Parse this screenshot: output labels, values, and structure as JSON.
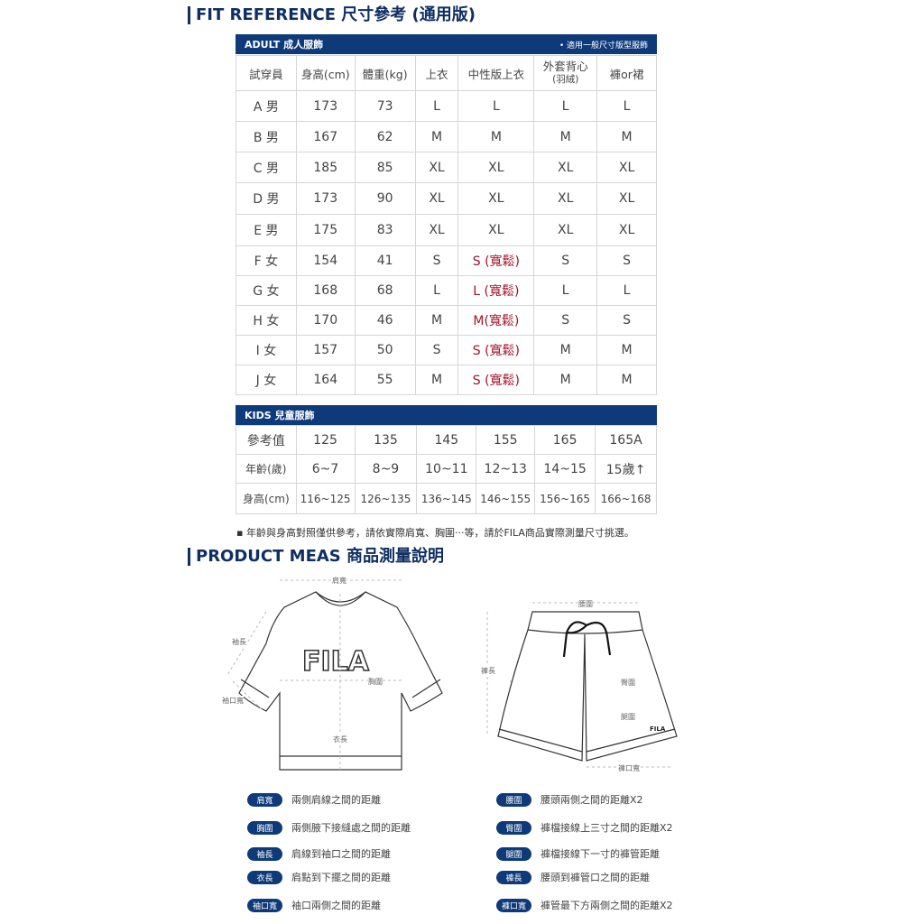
{
  "fit": {
    "title": "FIT REFERENCE  尺寸參考 (通用版)",
    "adult": {
      "label": "ADULT 成人服飾",
      "note": "• 適用一般尺寸版型服飾",
      "headers": [
        "試穿員",
        "身高(cm)",
        "體重(kg)",
        "上衣",
        "中性版上衣",
        "外套背心",
        "(羽絨)",
        "褲or裙"
      ],
      "rows": [
        [
          "A 男",
          "173",
          "73",
          "L",
          "L",
          "L",
          "L"
        ],
        [
          "B 男",
          "167",
          "62",
          "M",
          "M",
          "M",
          "M"
        ],
        [
          "C 男",
          "185",
          "85",
          "XL",
          "XL",
          "XL",
          "XL"
        ],
        [
          "D 男",
          "173",
          "90",
          "XL",
          "XL",
          "XL",
          "XL"
        ],
        [
          "E 男",
          "175",
          "83",
          "XL",
          "XL",
          "XL",
          "XL"
        ],
        [
          "F 女",
          "154",
          "41",
          "S",
          "S (寬鬆)",
          "S",
          "S"
        ],
        [
          "G 女",
          "168",
          "68",
          "L",
          "L (寬鬆)",
          "L",
          "L"
        ],
        [
          "H 女",
          "170",
          "46",
          "M",
          "M(寬鬆)",
          "S",
          "S"
        ],
        [
          "I 女",
          "157",
          "50",
          "S",
          "S (寬鬆)",
          "M",
          "M"
        ],
        [
          "J 女",
          "164",
          "55",
          "M",
          "S (寬鬆)",
          "M",
          "M"
        ]
      ]
    },
    "kids": {
      "label": "KIDS 兒童服飾",
      "rows": [
        [
          "參考值",
          "125",
          "135",
          "145",
          "155",
          "165",
          "165A"
        ],
        [
          "年齡(歲)",
          "6~7",
          "8~9",
          "10~11",
          "12~13",
          "14~15",
          "15歲↑"
        ],
        [
          "身高(cm)",
          "116~125",
          "126~135",
          "136~145",
          "146~155",
          "156~165",
          "166~168"
        ]
      ]
    },
    "footnote": "▪ 年齡與身高對照僅供參考，請依實際肩寬、胸圍‧‧‧等，請於FILA商品實際測量尺寸挑選。"
  },
  "meas": {
    "title": "PRODUCT MEAS  商品測量說明",
    "tee_labels": {
      "shoulder": "肩寬",
      "sleeve": "袖長",
      "cuff": "袖口寬",
      "chest": "胸圍",
      "length": "衣長",
      "logo": "FILA"
    },
    "shorts_labels": {
      "waist": "腰圍",
      "length": "褲長",
      "hip": "臀圍",
      "thigh": "腿圍",
      "hem": "褲口寬",
      "logo": "FILA"
    },
    "legend_left": [
      [
        "肩寬",
        "兩側肩線之間的距離"
      ],
      [
        "胸圍",
        "兩側腋下接縫處之間的距離"
      ],
      [
        "袖長",
        "肩線到袖口之間的距離"
      ],
      [
        "衣長",
        "肩點到下擺之間的距離"
      ],
      [
        "袖口寬",
        "袖口兩側之間的距離"
      ]
    ],
    "legend_right": [
      [
        "腰圍",
        "腰頭兩側之間的距離X2"
      ],
      [
        "臀圍",
        "褲檔接線上三寸之間的距離X2"
      ],
      [
        "腿圍",
        "褲檔接線下一寸的褲管距離"
      ],
      [
        "褲長",
        "腰頭到褲管口之間的距離"
      ],
      [
        "褲口寬",
        "褲管最下方兩側之間的距離X2"
      ]
    ]
  },
  "colors": {
    "navy": "#0e3a7a",
    "red": "#a3122a"
  }
}
